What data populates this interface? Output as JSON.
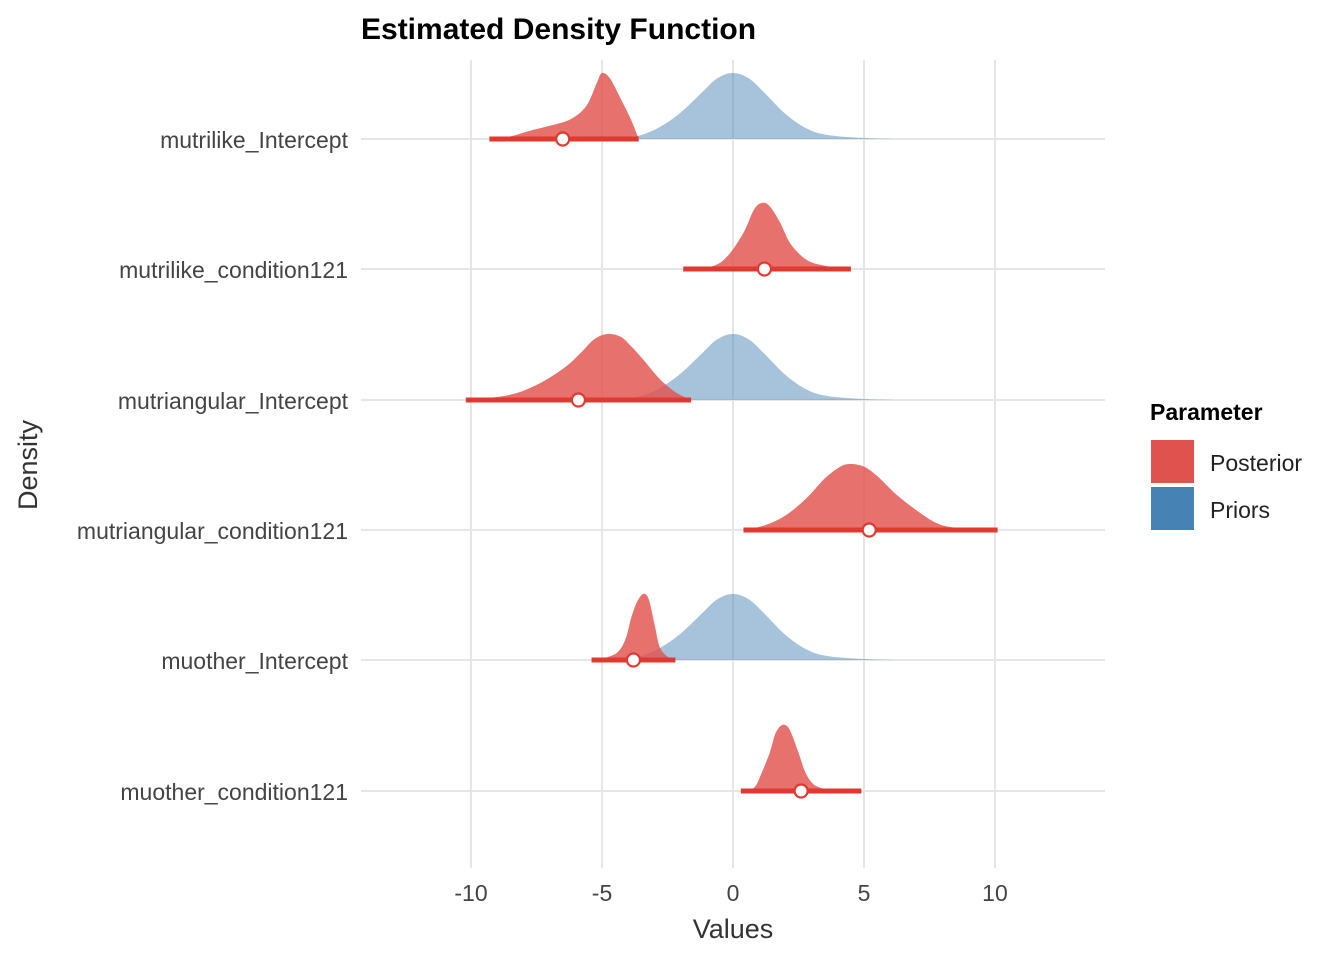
{
  "chart_data": {
    "type": "density-ridges",
    "title": "Estimated Density Function",
    "xlabel": "Values",
    "ylabel": "Density",
    "xlim": [
      -14.2,
      14.2
    ],
    "xticks": [
      -10,
      -5,
      0,
      5,
      10
    ],
    "grid": true,
    "legend": {
      "title": "Parameter",
      "position": "right",
      "entries": [
        {
          "label": "Posterior",
          "color": "#e0524d"
        },
        {
          "label": "Priors",
          "color": "#4682b4"
        }
      ]
    },
    "colors": {
      "posterior_fill": "#e0524d",
      "prior_fill": "#4682b4",
      "interval_line": "#e0392f"
    },
    "parameters": [
      {
        "name": "mutrilike_Intercept",
        "posterior": {
          "peak": -5.0,
          "interval": [
            -9.3,
            -3.6
          ],
          "point": -6.5,
          "curve": [
            [
              -9.3,
              0
            ],
            [
              -8.5,
              0.04
            ],
            [
              -7.8,
              0.12
            ],
            [
              -7.0,
              0.2
            ],
            [
              -6.2,
              0.3
            ],
            [
              -5.6,
              0.5
            ],
            [
              -5.2,
              0.85
            ],
            [
              -5.0,
              1.0
            ],
            [
              -4.7,
              0.92
            ],
            [
              -4.3,
              0.62
            ],
            [
              -3.9,
              0.3
            ],
            [
              -3.6,
              0
            ]
          ]
        },
        "prior": {
          "peak": 0.0,
          "curve": [
            [
              -4.5,
              0
            ],
            [
              -3.6,
              0.05
            ],
            [
              -2.8,
              0.18
            ],
            [
              -2.0,
              0.4
            ],
            [
              -1.2,
              0.7
            ],
            [
              -0.6,
              0.92
            ],
            [
              0,
              1.0
            ],
            [
              0.6,
              0.92
            ],
            [
              1.2,
              0.7
            ],
            [
              2.0,
              0.38
            ],
            [
              2.8,
              0.16
            ],
            [
              3.6,
              0.06
            ],
            [
              5.0,
              0.015
            ],
            [
              6.2,
              0
            ]
          ]
        }
      },
      {
        "name": "mutrilike_condition121",
        "posterior": {
          "peak": 1.0,
          "interval": [
            -1.9,
            4.5
          ],
          "point": 1.2,
          "curve": [
            [
              -1.9,
              0
            ],
            [
              -0.8,
              0.04
            ],
            [
              -0.2,
              0.2
            ],
            [
              0.4,
              0.55
            ],
            [
              0.8,
              0.9
            ],
            [
              1.1,
              1.0
            ],
            [
              1.4,
              0.95
            ],
            [
              1.8,
              0.7
            ],
            [
              2.2,
              0.38
            ],
            [
              2.8,
              0.14
            ],
            [
              3.5,
              0.05
            ],
            [
              4.5,
              0
            ]
          ]
        },
        "prior": null
      },
      {
        "name": "mutriangular_Intercept",
        "posterior": {
          "peak": -4.9,
          "interval": [
            -10.2,
            -1.6
          ],
          "point": -5.9,
          "curve": [
            [
              -10.2,
              0
            ],
            [
              -9.3,
              0.03
            ],
            [
              -8.3,
              0.1
            ],
            [
              -7.3,
              0.27
            ],
            [
              -6.4,
              0.5
            ],
            [
              -5.8,
              0.72
            ],
            [
              -5.3,
              0.92
            ],
            [
              -4.8,
              1.0
            ],
            [
              -4.3,
              0.96
            ],
            [
              -3.9,
              0.82
            ],
            [
              -3.4,
              0.6
            ],
            [
              -2.8,
              0.32
            ],
            [
              -2.2,
              0.12
            ],
            [
              -1.6,
              0
            ]
          ]
        },
        "prior": {
          "peak": 0.0,
          "curve": [
            [
              -4.5,
              0
            ],
            [
              -3.6,
              0.05
            ],
            [
              -2.8,
              0.18
            ],
            [
              -2.0,
              0.4
            ],
            [
              -1.2,
              0.7
            ],
            [
              -0.6,
              0.92
            ],
            [
              0,
              1.0
            ],
            [
              0.6,
              0.92
            ],
            [
              1.2,
              0.7
            ],
            [
              2.0,
              0.38
            ],
            [
              2.8,
              0.16
            ],
            [
              3.6,
              0.06
            ],
            [
              5.0,
              0.015
            ],
            [
              6.2,
              0
            ]
          ]
        }
      },
      {
        "name": "mutriangular_condition121",
        "posterior": {
          "peak": 4.4,
          "interval": [
            0.4,
            10.1
          ],
          "point": 5.2,
          "curve": [
            [
              0.4,
              0
            ],
            [
              1.2,
              0.07
            ],
            [
              2.0,
              0.22
            ],
            [
              2.8,
              0.48
            ],
            [
              3.5,
              0.78
            ],
            [
              4.1,
              0.96
            ],
            [
              4.5,
              1.0
            ],
            [
              5.0,
              0.96
            ],
            [
              5.5,
              0.82
            ],
            [
              6.2,
              0.55
            ],
            [
              7.0,
              0.3
            ],
            [
              7.8,
              0.1
            ],
            [
              8.6,
              0.03
            ],
            [
              10.1,
              0
            ]
          ]
        },
        "prior": null
      },
      {
        "name": "muother_Intercept",
        "posterior": {
          "peak": -3.4,
          "interval": [
            -5.4,
            -2.2
          ],
          "point": -3.8,
          "curve": [
            [
              -5.4,
              0
            ],
            [
              -4.9,
              0.03
            ],
            [
              -4.4,
              0.12
            ],
            [
              -4.1,
              0.32
            ],
            [
              -3.9,
              0.62
            ],
            [
              -3.7,
              0.85
            ],
            [
              -3.5,
              0.98
            ],
            [
              -3.35,
              1.0
            ],
            [
              -3.2,
              0.9
            ],
            [
              -3.0,
              0.55
            ],
            [
              -2.8,
              0.2
            ],
            [
              -2.5,
              0.05
            ],
            [
              -2.2,
              0
            ]
          ]
        },
        "prior": {
          "peak": 0.0,
          "curve": [
            [
              -4.5,
              0
            ],
            [
              -3.6,
              0.05
            ],
            [
              -2.8,
              0.18
            ],
            [
              -2.0,
              0.4
            ],
            [
              -1.2,
              0.7
            ],
            [
              -0.6,
              0.92
            ],
            [
              0,
              1.0
            ],
            [
              0.6,
              0.92
            ],
            [
              1.2,
              0.7
            ],
            [
              2.0,
              0.38
            ],
            [
              2.8,
              0.16
            ],
            [
              3.6,
              0.06
            ],
            [
              5.0,
              0.015
            ],
            [
              6.2,
              0
            ]
          ]
        }
      },
      {
        "name": "muother_condition121",
        "posterior": {
          "peak": 1.8,
          "interval": [
            0.3,
            4.9
          ],
          "point": 2.6,
          "curve": [
            [
              0.3,
              0
            ],
            [
              0.8,
              0.05
            ],
            [
              1.1,
              0.28
            ],
            [
              1.4,
              0.58
            ],
            [
              1.6,
              0.85
            ],
            [
              1.8,
              0.98
            ],
            [
              2.0,
              1.0
            ],
            [
              2.2,
              0.9
            ],
            [
              2.5,
              0.58
            ],
            [
              2.8,
              0.25
            ],
            [
              3.2,
              0.07
            ],
            [
              4.0,
              0.01
            ],
            [
              4.9,
              0
            ]
          ]
        },
        "prior": null
      }
    ]
  }
}
